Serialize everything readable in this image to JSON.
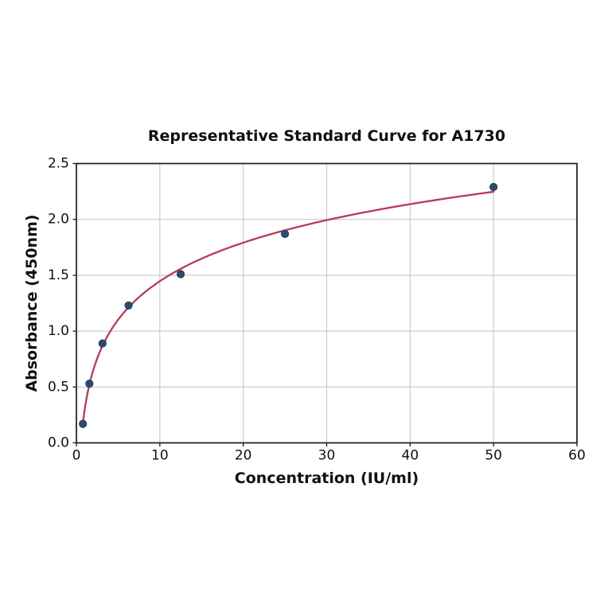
{
  "chart_data": {
    "type": "scatter",
    "title": "Representative Standard Curve for A1730",
    "xlabel": "Concentration (IU/ml)",
    "ylabel": "Absorbance (450nm)",
    "xlim": [
      0,
      60
    ],
    "ylim": [
      0,
      2.5
    ],
    "xticks": [
      0,
      10,
      20,
      30,
      40,
      50,
      60
    ],
    "ytick_labels": [
      "0.0",
      "0.5",
      "1.0",
      "1.5",
      "2.0",
      "2.5"
    ],
    "grid": true,
    "legend": "none",
    "points": [
      {
        "x": 0.78,
        "y": 0.17
      },
      {
        "x": 1.56,
        "y": 0.53
      },
      {
        "x": 3.13,
        "y": 0.89
      },
      {
        "x": 6.25,
        "y": 1.23
      },
      {
        "x": 12.5,
        "y": 1.51
      },
      {
        "x": 25,
        "y": 1.87
      },
      {
        "x": 50,
        "y": 2.29
      }
    ],
    "fit_curve": {
      "type": "logarithmic",
      "x_start": 0.78,
      "x_end": 50
    },
    "colors": {
      "curve": "#b63a5e",
      "marker_fill": "#2e4a6e",
      "marker_edge": "#1f3a58",
      "grid": "#c8c8c8",
      "axis": "#1c1c1c",
      "background": "#ffffff"
    }
  }
}
